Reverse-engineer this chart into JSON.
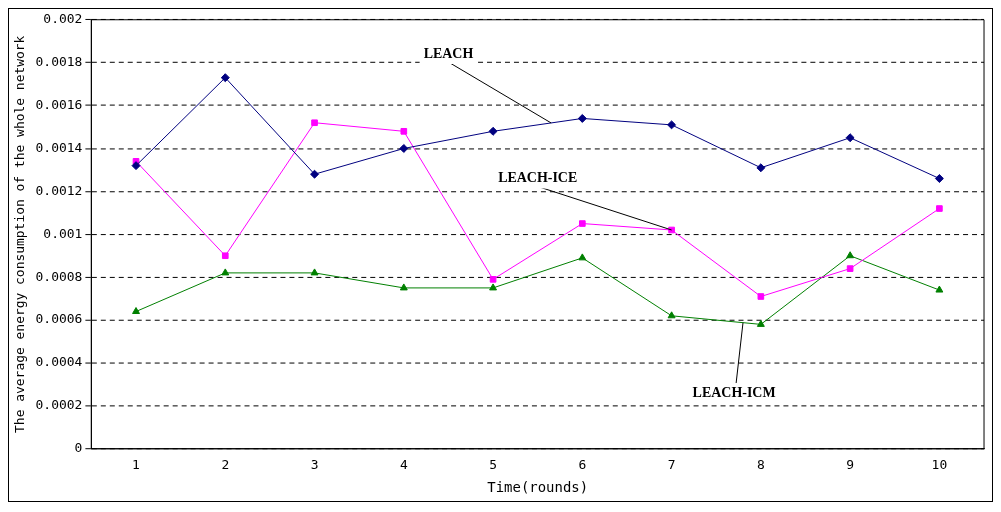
{
  "chart_data": {
    "type": "line",
    "xlabel": "Time(rounds)",
    "ylabel": "The average energy consumption of the whole network",
    "categories": [
      "1",
      "2",
      "3",
      "4",
      "5",
      "6",
      "7",
      "8",
      "9",
      "10"
    ],
    "series": [
      {
        "name": "LEACH",
        "color": "#000080",
        "marker": "diamond",
        "values": [
          0.00132,
          0.00173,
          0.00128,
          0.0014,
          0.00148,
          0.00154,
          0.00151,
          0.00131,
          0.00145,
          0.00126
        ]
      },
      {
        "name": "LEACH-ICE",
        "color": "#ff00ff",
        "marker": "square",
        "values": [
          0.00134,
          0.0009,
          0.00152,
          0.00148,
          0.00079,
          0.00105,
          0.00102,
          0.00071,
          0.00084,
          0.00112
        ]
      },
      {
        "name": "LEACH-ICM",
        "color": "#008000",
        "marker": "triangle",
        "values": [
          0.00064,
          0.00082,
          0.00082,
          0.00075,
          0.00075,
          0.00089,
          0.00062,
          0.00058,
          0.0009,
          0.00074
        ]
      }
    ],
    "ylim": [
      0,
      0.002
    ],
    "yticks": [
      0,
      0.0002,
      0.0004,
      0.0006,
      0.0008,
      0.001,
      0.0012,
      0.0014,
      0.0016,
      0.0018,
      0.002
    ],
    "grid": "y",
    "legend": false,
    "line_style": "solid"
  }
}
